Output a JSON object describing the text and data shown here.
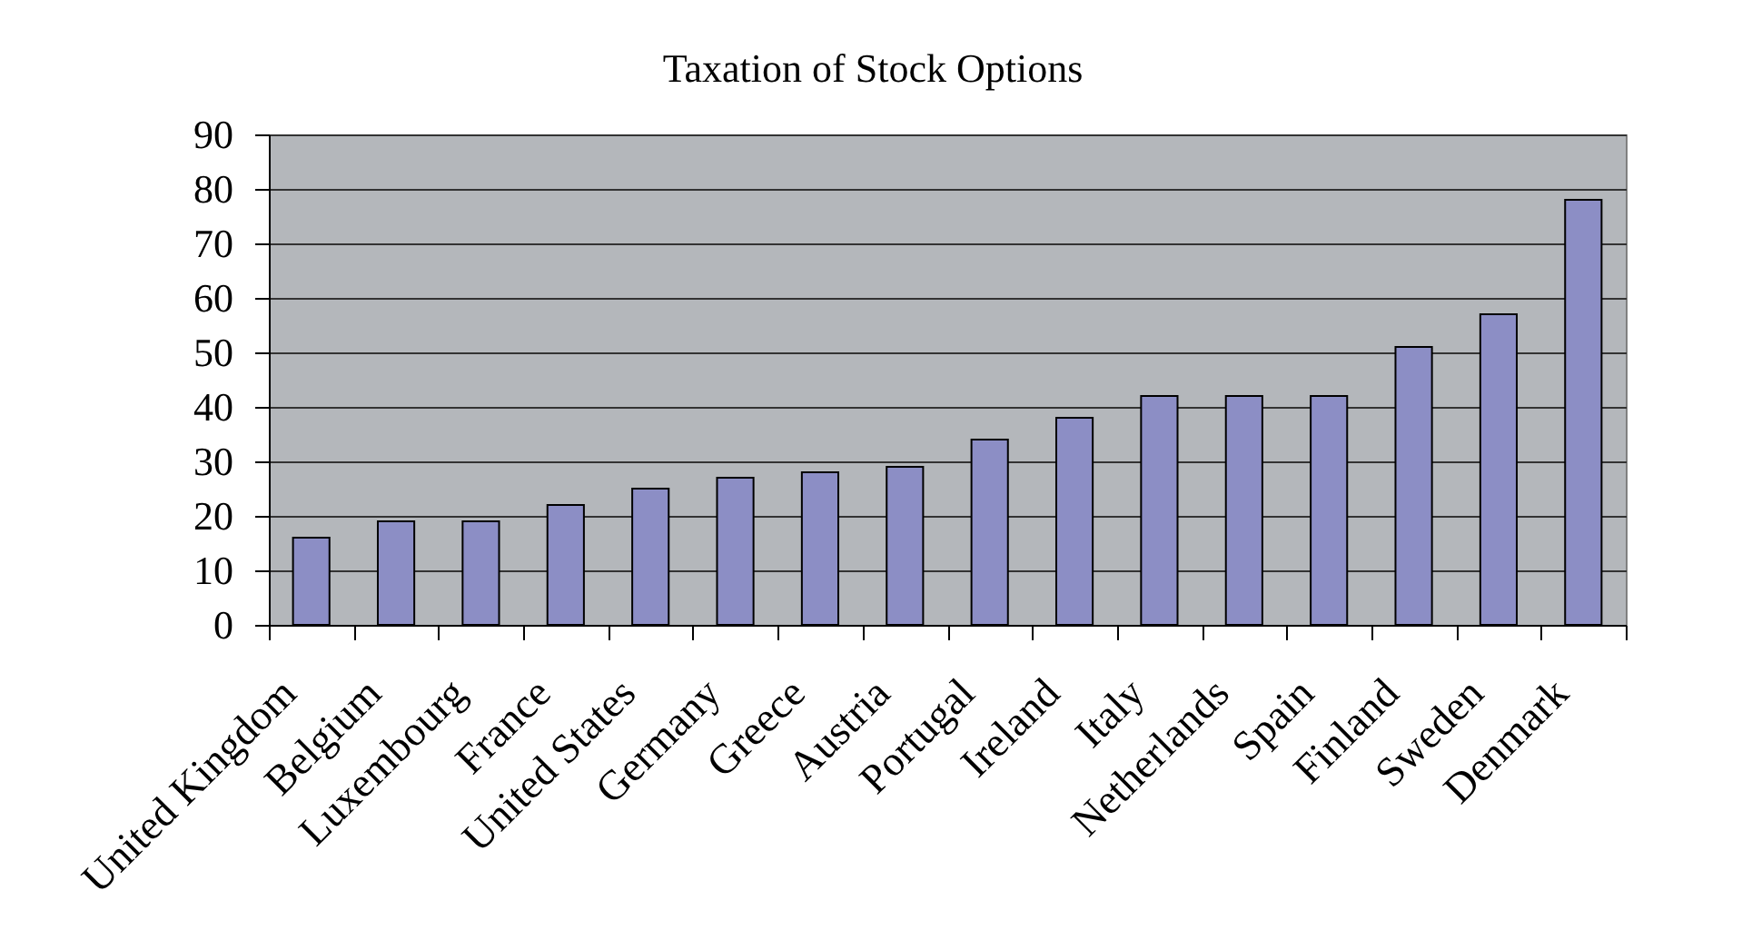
{
  "chart_data": {
    "type": "bar",
    "title": "Taxation of Stock Options",
    "categories": [
      "United Kingdom",
      "Belgium",
      "Luxembourg",
      "France",
      "United States",
      "Germany",
      "Greece",
      "Austria",
      "Portugal",
      "Ireland",
      "Italy",
      "Netherlands",
      "Spain",
      "Finland",
      "Sweden",
      "Denmark"
    ],
    "values": [
      16,
      19,
      19,
      22,
      25,
      27,
      28,
      29,
      34,
      38,
      42,
      42,
      42,
      51,
      57,
      78
    ],
    "color": "#8c8ec5",
    "ylim": [
      0,
      90
    ],
    "yticks": [
      0,
      10,
      20,
      30,
      40,
      50,
      60,
      70,
      80,
      90
    ],
    "grid": "y"
  }
}
